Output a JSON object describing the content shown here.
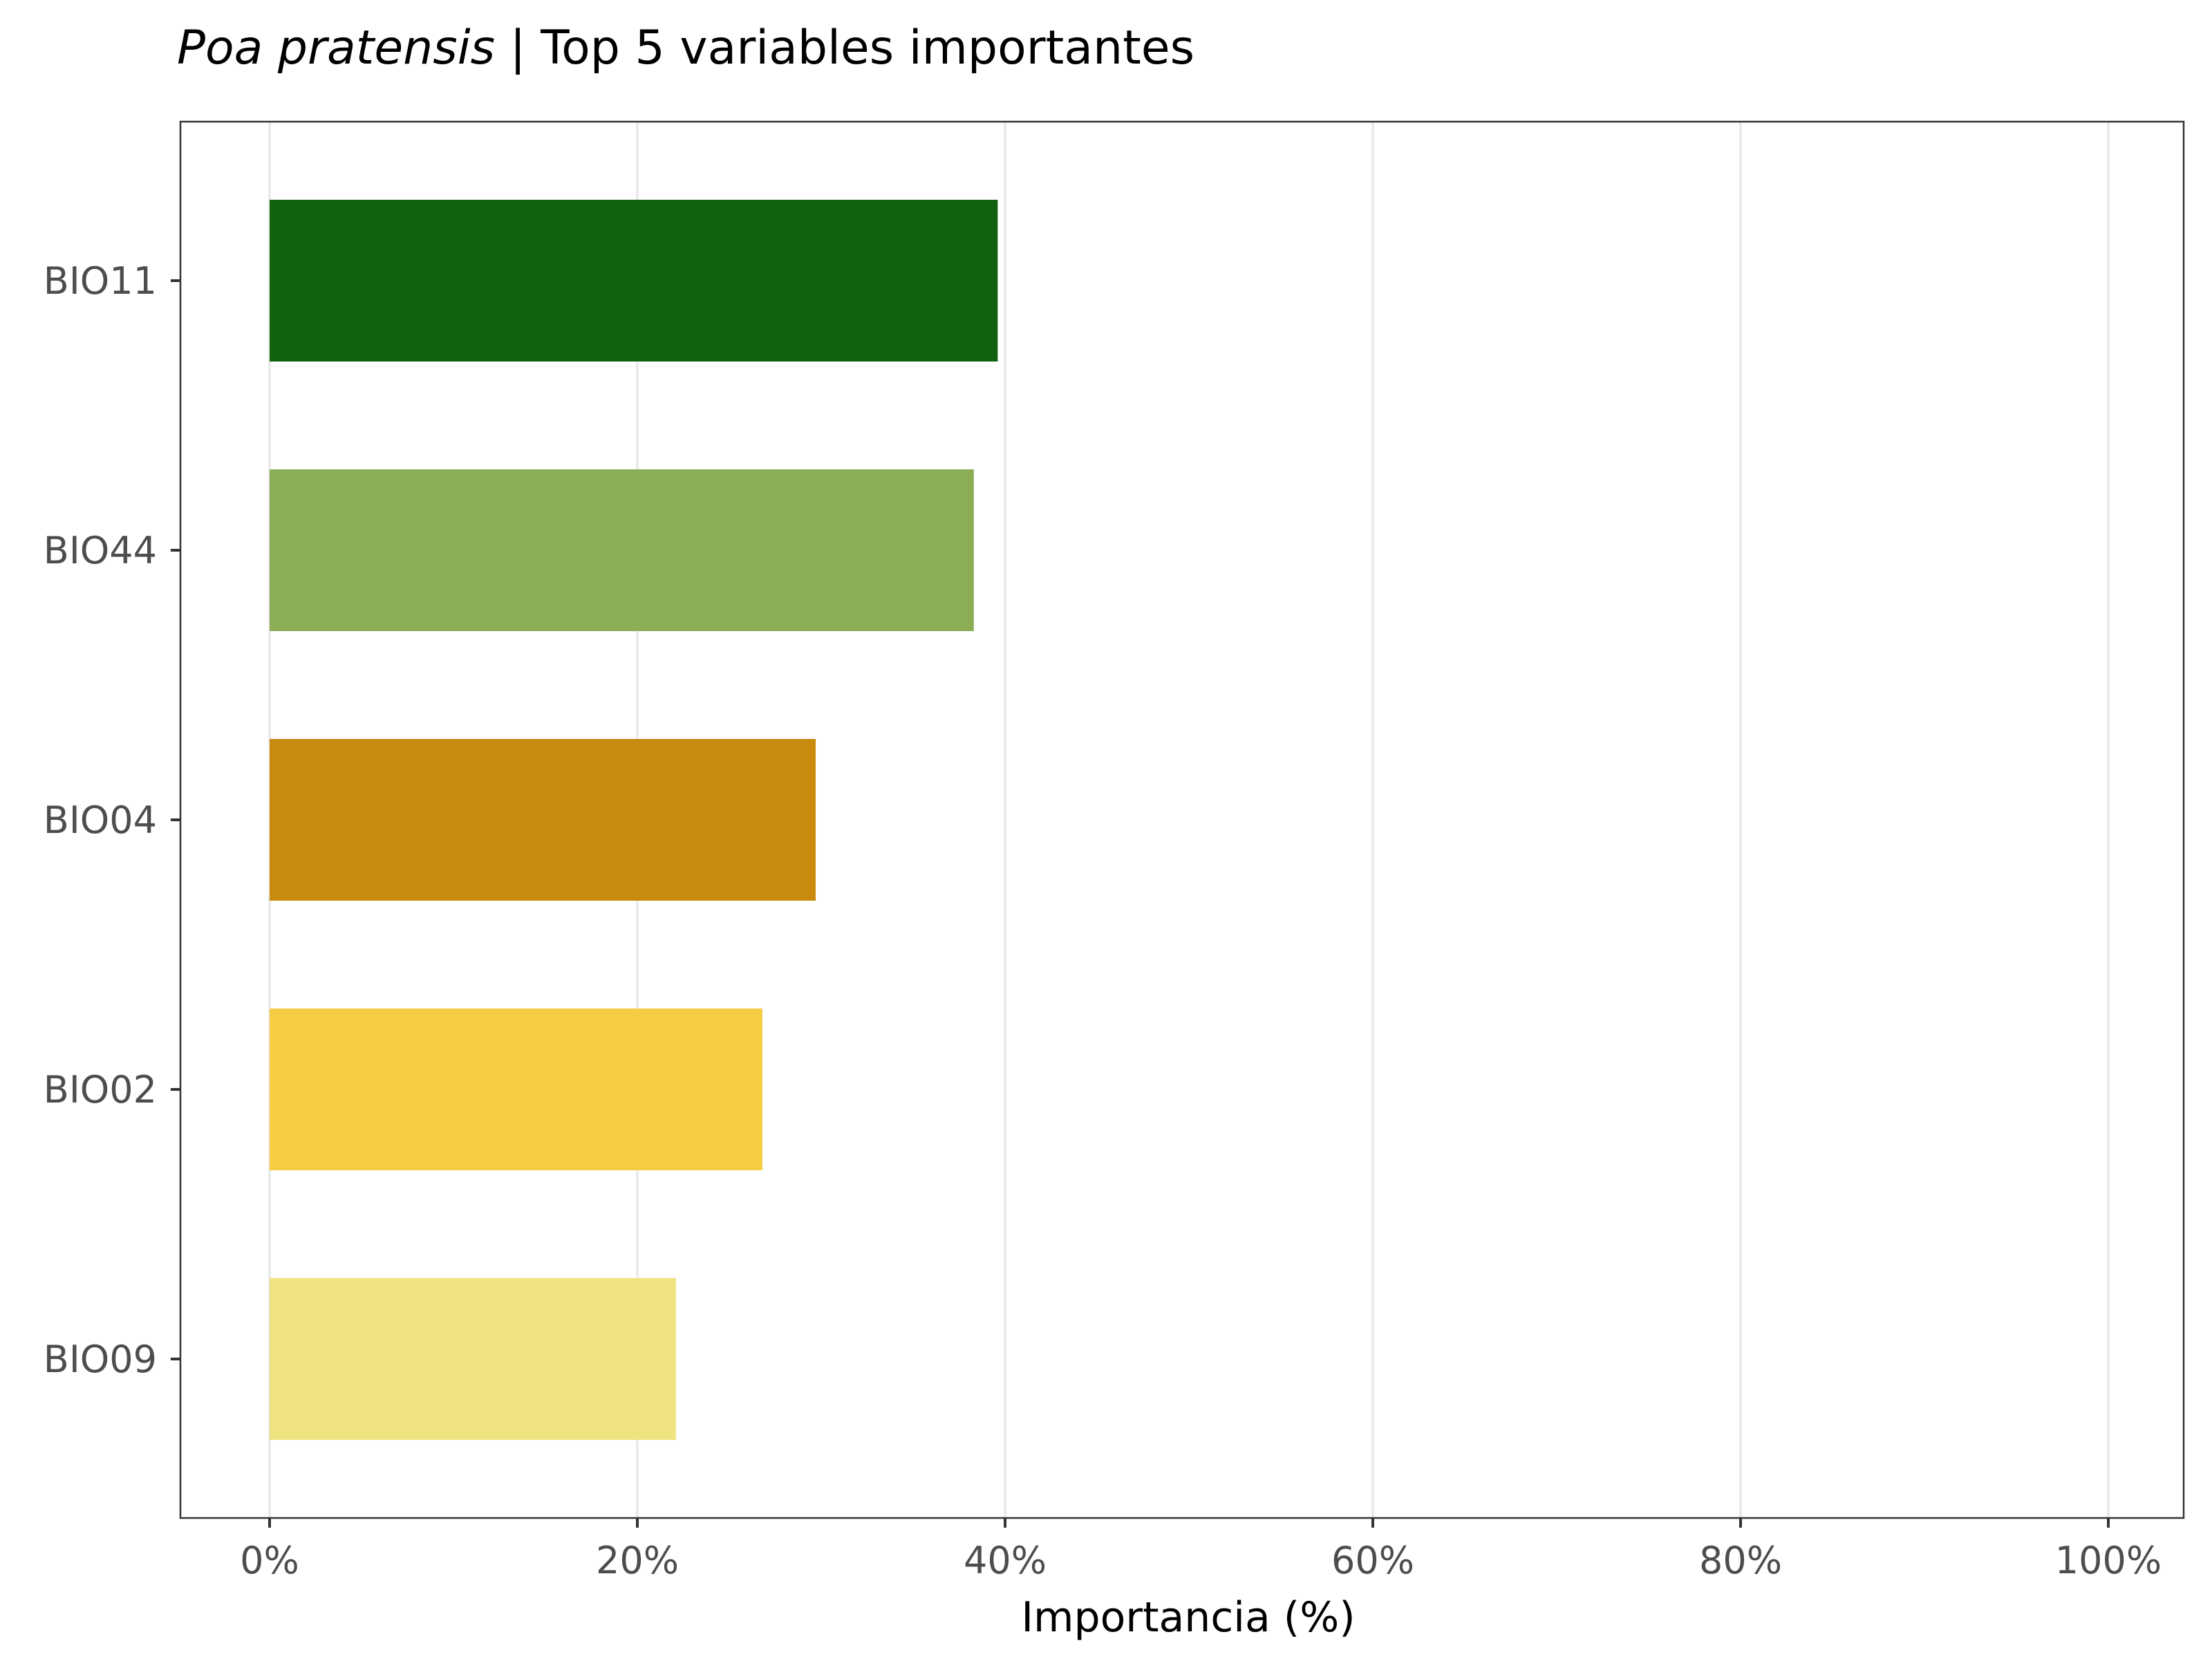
{
  "chart_data": {
    "type": "bar",
    "orientation": "horizontal",
    "title": {
      "italic": "Poa pratensis",
      "rest": " | Top 5 variables importantes"
    },
    "xlabel": "Importancia (%)",
    "ylabel": "",
    "categories": [
      "BIO11",
      "BIO44",
      "BIO04",
      "BIO02",
      "BIO09"
    ],
    "values": [
      39.6,
      38.3,
      29.7,
      26.8,
      22.1
    ],
    "colors": [
      "#12610f",
      "#8bad55",
      "#c98b0f",
      "#f6cc42",
      "#eee37e"
    ],
    "xlim": [
      0,
      100
    ],
    "x_ticks": [
      0,
      20,
      40,
      60,
      80,
      100
    ],
    "x_tick_labels": [
      "0%",
      "20%",
      "40%",
      "60%",
      "80%",
      "100%"
    ],
    "grid": "vertical-major",
    "legend": "none"
  }
}
